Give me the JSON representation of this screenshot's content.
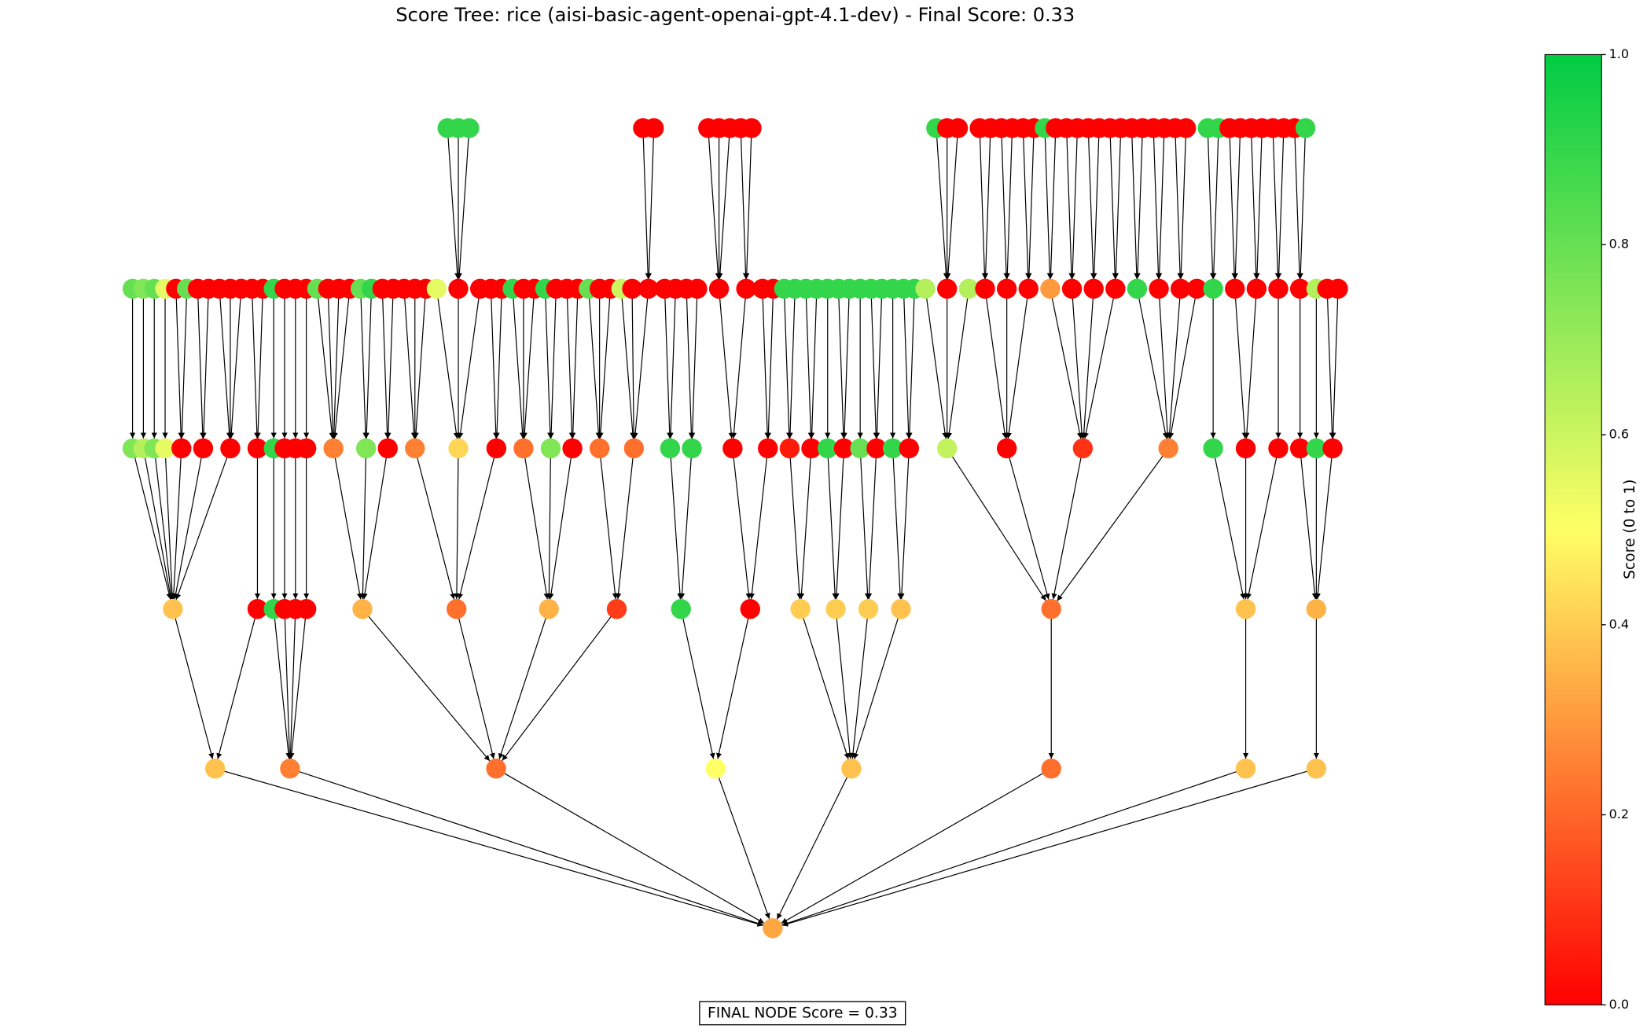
{
  "title": "Score Tree: rice (aisi-basic-agent-openai-gpt-4.1-dev) - Final Score: 0.33",
  "final_label": "FINAL NODE Score = 0.33",
  "colorbar": {
    "label": "Score (0 to 1)",
    "lim": [
      0,
      1
    ],
    "colormap": [
      "#ff0000",
      "#ffff66",
      "#00cc44"
    ],
    "ticks": [
      {
        "value": 0,
        "label": "0.0"
      },
      0.2,
      0.4,
      0.6,
      0.8,
      {
        "value": 1,
        "label": "1.0"
      }
    ]
  },
  "tree": {
    "score": 0.33,
    "children": [
      {
        "score": 0.38,
        "children": [
          {
            "score": 0.38,
            "children": [
              {
                "score": 0.75,
                "children": [
                  {
                    "score": 0.8
                  }
                ]
              },
              {
                "score": 0.65,
                "children": [
                  {
                    "score": 0.75
                  }
                ]
              },
              {
                "score": 0.75,
                "children": [
                  {
                    "score": 0.8
                  }
                ]
              },
              {
                "score": 0.55,
                "children": [
                  {
                    "score": 0.55
                  }
                ]
              },
              {
                "score": 0,
                "children": [
                  {
                    "score": 0
                  },
                  {
                    "score": 0.8
                  }
                ]
              },
              {
                "score": 0,
                "children": [
                  {
                    "score": 0
                  },
                  {
                    "score": 0
                  }
                ]
              },
              {
                "score": 0,
                "children": [
                  {
                    "score": 0
                  },
                  {
                    "score": 0
                  },
                  {
                    "score": 0
                  }
                ]
              }
            ]
          },
          {
            "score": 0,
            "children": [
              {
                "score": 0,
                "children": [
                  {
                    "score": 0
                  },
                  {
                    "score": 0
                  }
                ]
              }
            ]
          }
        ]
      },
      {
        "score": 0.25,
        "children": [
          {
            "score": 0.9,
            "children": [
              {
                "score": 0.9,
                "children": [
                  {
                    "score": 0.9
                  }
                ]
              }
            ]
          },
          {
            "score": 0,
            "children": [
              {
                "score": 0,
                "children": [
                  {
                    "score": 0
                  }
                ]
              }
            ]
          },
          {
            "score": 0,
            "children": [
              {
                "score": 0,
                "children": [
                  {
                    "score": 0
                  }
                ]
              }
            ]
          },
          {
            "score": 0,
            "children": [
              {
                "score": 0,
                "children": [
                  {
                    "score": 0
                  }
                ]
              }
            ]
          }
        ]
      },
      {
        "score": 0.22,
        "children": [
          {
            "score": 0.35,
            "children": [
              {
                "score": 0.25,
                "children": [
                  {
                    "score": 0.8
                  },
                  {
                    "score": 0
                  },
                  {
                    "score": 0
                  },
                  {
                    "score": 0
                  }
                ]
              },
              {
                "score": 0.75,
                "children": [
                  {
                    "score": 0.8
                  },
                  {
                    "score": 0.9
                  }
                ]
              },
              {
                "score": 0,
                "children": [
                  {
                    "score": 0
                  },
                  {
                    "score": 0
                  }
                ]
              }
            ]
          },
          {
            "score": 0.22,
            "children": [
              {
                "score": 0.25,
                "children": [
                  {
                    "score": 0
                  },
                  {
                    "score": 0
                  },
                  {
                    "score": 0
                  }
                ]
              },
              {
                "score": 0.42,
                "children": [
                  {
                    "score": 0.55
                  },
                  {
                    "score": 0,
                    "children": [
                      {
                        "score": 0.9
                      },
                      {
                        "score": 0.9
                      },
                      {
                        "score": 0.9
                      }
                    ]
                  },
                  {
                    "score": 0
                  }
                ]
              },
              {
                "score": 0,
                "children": [
                  {
                    "score": 0
                  },
                  {
                    "score": 0
                  }
                ]
              }
            ]
          },
          {
            "score": 0.35,
            "children": [
              {
                "score": 0.22,
                "children": [
                  {
                    "score": 0.9
                  },
                  {
                    "score": 0
                  },
                  {
                    "score": 0
                  }
                ]
              },
              {
                "score": 0.75,
                "children": [
                  {
                    "score": 0.9
                  },
                  {
                    "score": 0
                  }
                ]
              },
              {
                "score": 0,
                "children": [
                  {
                    "score": 0
                  },
                  {
                    "score": 0
                  }
                ]
              }
            ]
          },
          {
            "score": 0.12,
            "children": [
              {
                "score": 0.22,
                "children": [
                  {
                    "score": 0.8
                  },
                  {
                    "score": 0
                  },
                  {
                    "score": 0
                  }
                ]
              },
              {
                "score": 0.22,
                "children": [
                  {
                    "score": 0.6
                  },
                  {
                    "score": 0
                  },
                  {
                    "score": 0,
                    "children": [
                      {
                        "score": 0
                      },
                      {
                        "score": 0
                      }
                    ]
                  }
                ]
              }
            ]
          }
        ]
      },
      {
        "score": 0.5,
        "children": [
          {
            "score": 0.9,
            "children": [
              {
                "score": 0.9,
                "children": [
                  {
                    "score": 0
                  },
                  {
                    "score": 0
                  }
                ]
              },
              {
                "score": 0.9,
                "children": [
                  {
                    "score": 0
                  },
                  {
                    "score": 0
                  }
                ]
              }
            ]
          },
          {
            "score": 0,
            "children": [
              {
                "score": 0,
                "children": [
                  {
                    "score": 0,
                    "children": [
                      {
                        "score": 0
                      },
                      {
                        "score": 0
                      },
                      {
                        "score": 0
                      }
                    ]
                  },
                  {
                    "score": 0,
                    "children": [
                      {
                        "score": 0
                      },
                      {
                        "score": 0
                      }
                    ]
                  }
                ]
              },
              {
                "score": 0,
                "children": [
                  {
                    "score": 0
                  },
                  {
                    "score": 0
                  }
                ]
              }
            ]
          }
        ]
      },
      {
        "score": 0.38,
        "children": [
          {
            "score": 0.4,
            "children": [
              {
                "score": 0.05,
                "children": [
                  {
                    "score": 0.9
                  },
                  {
                    "score": 0.9
                  }
                ]
              },
              {
                "score": 0,
                "children": [
                  {
                    "score": 0.9
                  },
                  {
                    "score": 0.9
                  }
                ]
              }
            ]
          },
          {
            "score": 0.4,
            "children": [
              {
                "score": 0.9,
                "children": [
                  {
                    "score": 0.9
                  }
                ]
              },
              {
                "score": 0,
                "children": [
                  {
                    "score": 0.9
                  },
                  {
                    "score": 0.9
                  }
                ]
              }
            ]
          },
          {
            "score": 0.4,
            "children": [
              {
                "score": 0.8,
                "children": [
                  {
                    "score": 0.9
                  }
                ]
              },
              {
                "score": 0,
                "children": [
                  {
                    "score": 0.9
                  },
                  {
                    "score": 0.9
                  }
                ]
              }
            ]
          },
          {
            "score": 0.38,
            "children": [
              {
                "score": 0.9,
                "children": [
                  {
                    "score": 0.9
                  }
                ]
              },
              {
                "score": 0,
                "children": [
                  {
                    "score": 0.9
                  },
                  {
                    "score": 0.9
                  }
                ]
              }
            ]
          }
        ]
      },
      {
        "score": 0.22,
        "children": [
          {
            "score": 0.22,
            "children": [
              {
                "score": 0.62,
                "children": [
                  {
                    "score": 0.65
                  },
                  {
                    "score": 0,
                    "children": [
                      {
                        "score": 0.9
                      },
                      {
                        "score": 0
                      },
                      {
                        "score": 0
                      }
                    ]
                  },
                  {
                    "score": 0.65
                  }
                ]
              },
              {
                "score": 0,
                "children": [
                  {
                    "score": 0,
                    "children": [
                      {
                        "score": 0
                      },
                      {
                        "score": 0
                      }
                    ]
                  },
                  {
                    "score": 0,
                    "children": [
                      {
                        "score": 0
                      },
                      {
                        "score": 0
                      }
                    ]
                  },
                  {
                    "score": 0,
                    "children": [
                      {
                        "score": 0
                      },
                      {
                        "score": 0
                      }
                    ]
                  }
                ]
              },
              {
                "score": 0.1,
                "children": [
                  {
                    "score": 0.3,
                    "children": [
                      {
                        "score": 0.9
                      },
                      {
                        "score": 0
                      }
                    ]
                  },
                  {
                    "score": 0,
                    "children": [
                      {
                        "score": 0
                      },
                      {
                        "score": 0
                      }
                    ]
                  },
                  {
                    "score": 0,
                    "children": [
                      {
                        "score": 0
                      },
                      {
                        "score": 0
                      }
                    ]
                  },
                  {
                    "score": 0,
                    "children": [
                      {
                        "score": 0
                      },
                      {
                        "score": 0
                      }
                    ]
                  }
                ]
              },
              {
                "score": 0.25,
                "children": [
                  {
                    "score": 0.9,
                    "children": [
                      {
                        "score": 0
                      },
                      {
                        "score": 0
                      }
                    ]
                  },
                  {
                    "score": 0,
                    "children": [
                      {
                        "score": 0
                      },
                      {
                        "score": 0
                      }
                    ]
                  },
                  {
                    "score": 0,
                    "children": [
                      {
                        "score": 0
                      },
                      {
                        "score": 0
                      }
                    ]
                  },
                  {
                    "score": 0
                  }
                ]
              }
            ]
          }
        ]
      },
      {
        "score": 0.38,
        "children": [
          {
            "score": 0.38,
            "children": [
              {
                "score": 0.9,
                "children": [
                  {
                    "score": 0.9,
                    "children": [
                      {
                        "score": 0.9
                      },
                      {
                        "score": 0.9
                      }
                    ]
                  }
                ]
              },
              {
                "score": 0,
                "children": [
                  {
                    "score": 0,
                    "children": [
                      {
                        "score": 0
                      },
                      {
                        "score": 0
                      }
                    ]
                  },
                  {
                    "score": 0,
                    "children": [
                      {
                        "score": 0
                      },
                      {
                        "score": 0
                      }
                    ]
                  }
                ]
              },
              {
                "score": 0,
                "children": [
                  {
                    "score": 0,
                    "children": [
                      {
                        "score": 0
                      },
                      {
                        "score": 0
                      }
                    ]
                  }
                ]
              }
            ]
          }
        ]
      },
      {
        "score": 0.38,
        "children": [
          {
            "score": 0.35,
            "children": [
              {
                "score": 0,
                "children": [
                  {
                    "score": 0,
                    "children": [
                      {
                        "score": 0
                      },
                      {
                        "score": 0.9
                      }
                    ]
                  }
                ]
              },
              {
                "score": 0.9,
                "children": [
                  {
                    "score": 0.65
                  }
                ]
              },
              {
                "score": 0,
                "children": [
                  {
                    "score": 0
                  },
                  {
                    "score": 0
                  }
                ]
              }
            ]
          }
        ]
      }
    ]
  }
}
